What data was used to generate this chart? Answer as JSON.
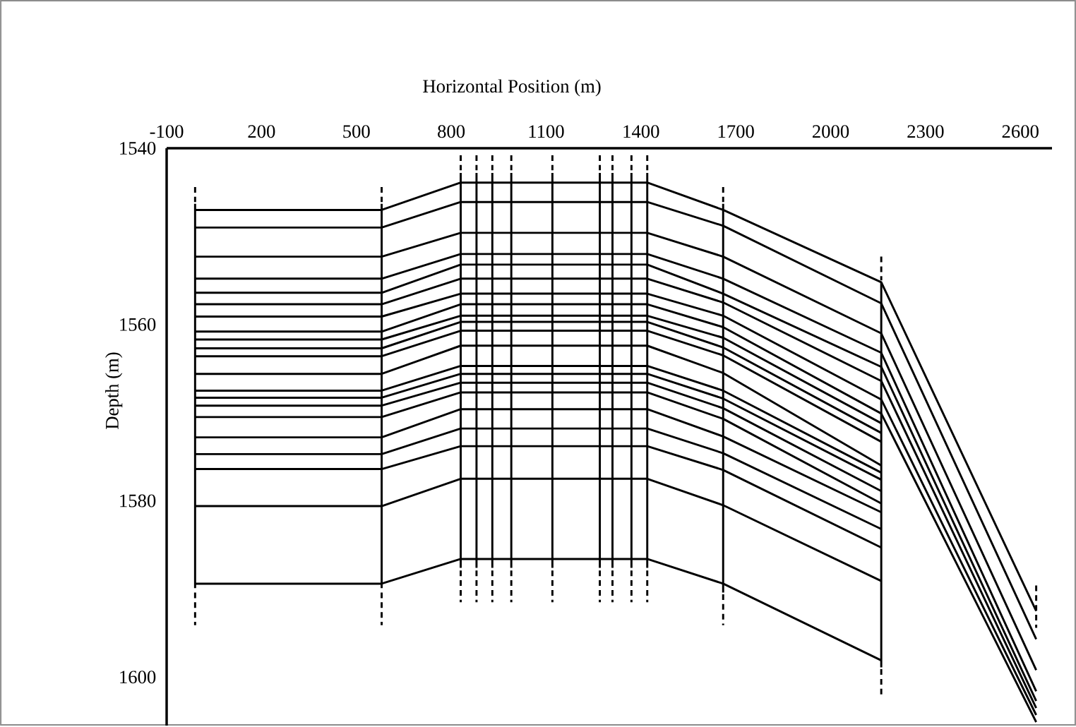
{
  "chart_data": {
    "type": "line",
    "xlabel": "Horizontal Position (m)",
    "ylabel": "Depth (m)",
    "xlim": [
      -100,
      2700
    ],
    "ylim": [
      1605.5,
      1540
    ],
    "xticks": [
      -100,
      200,
      500,
      800,
      1100,
      1400,
      1700,
      2000,
      2300,
      2600
    ],
    "yticks": [
      1540,
      1560,
      1580,
      1600
    ],
    "x": [
      -10,
      580,
      830,
      880,
      930,
      990,
      1120,
      1270,
      1310,
      1370,
      1420,
      1660,
      2160,
      2650
    ],
    "line_style": "solid",
    "series": [
      {
        "color": "#000000",
        "values": [
          1547.0,
          1547.0,
          1543.9,
          1543.9,
          1543.9,
          1543.9,
          1543.9,
          1543.9,
          1543.9,
          1543.9,
          1543.9,
          1547.0,
          1555.2,
          1592.5
        ]
      },
      {
        "color": "#000000",
        "values": [
          1549.0,
          1549.0,
          1546.1,
          1546.1,
          1546.1,
          1546.1,
          1546.1,
          1546.1,
          1546.1,
          1546.1,
          1546.1,
          1548.8,
          1557.6,
          1595.7
        ]
      },
      {
        "color": "#000000",
        "values": [
          1552.3,
          1552.3,
          1549.6,
          1549.6,
          1549.6,
          1549.6,
          1549.6,
          1549.6,
          1549.6,
          1549.6,
          1549.6,
          1552.3,
          1561.0,
          1599.2
        ]
      },
      {
        "color": "#000000",
        "values": [
          1554.8,
          1554.8,
          1552.0,
          1552.0,
          1552.0,
          1552.0,
          1552.0,
          1552.0,
          1552.0,
          1552.0,
          1552.0,
          1554.8,
          1563.2,
          1601.6
        ]
      },
      {
        "color": "#000000",
        "values": [
          1556.4,
          1556.4,
          1553.2,
          1553.2,
          1553.2,
          1553.2,
          1553.2,
          1553.2,
          1553.2,
          1553.2,
          1553.2,
          1556.5,
          1564.8,
          1602.7
        ]
      },
      {
        "color": "#000000",
        "values": [
          1557.7,
          1557.7,
          1554.8,
          1554.8,
          1554.8,
          1554.8,
          1554.8,
          1554.8,
          1554.8,
          1554.8,
          1554.8,
          1557.5,
          1566.4,
          1603.5
        ]
      },
      {
        "color": "#000000",
        "values": [
          1559.1,
          1559.1,
          1556.5,
          1556.5,
          1556.5,
          1556.5,
          1556.5,
          1556.5,
          1556.5,
          1556.5,
          1556.5,
          1559.0,
          1568.5,
          1604.3
        ]
      },
      {
        "color": "#000000",
        "values": [
          1560.8,
          1560.8,
          1557.7,
          1557.7,
          1557.7,
          1557.7,
          1557.7,
          1557.7,
          1557.7,
          1557.7,
          1557.7,
          1560.3,
          1570.1,
          1605.1
        ]
      },
      {
        "color": "#000000",
        "values": [
          1561.7,
          1561.7,
          1559.0,
          1559.0,
          1559.0,
          1559.0,
          1559.0,
          1559.0,
          1559.0,
          1559.0,
          1559.0,
          1561.5,
          1571.2,
          null
        ]
      },
      {
        "color": "#000000",
        "values": [
          1562.7,
          1562.7,
          1559.7,
          1559.7,
          1559.7,
          1559.7,
          1559.7,
          1559.7,
          1559.7,
          1559.7,
          1559.7,
          1562.6,
          1572.3,
          null
        ]
      },
      {
        "color": "#000000",
        "values": [
          1563.6,
          1563.6,
          1560.7,
          1560.7,
          1560.7,
          1560.7,
          1560.7,
          1560.7,
          1560.7,
          1560.7,
          1560.7,
          1563.5,
          1573.3,
          null
        ]
      },
      {
        "color": "#000000",
        "values": [
          1565.6,
          1565.6,
          1562.4,
          1562.4,
          1562.4,
          1562.4,
          1562.4,
          1562.4,
          1562.4,
          1562.4,
          1562.4,
          1565.5,
          1576.0,
          null
        ]
      },
      {
        "color": "#000000",
        "values": [
          1567.5,
          1567.5,
          1564.7,
          1564.7,
          1564.7,
          1564.7,
          1564.7,
          1564.7,
          1564.7,
          1564.7,
          1564.7,
          1567.5,
          1576.8,
          null
        ]
      },
      {
        "color": "#000000",
        "values": [
          1568.3,
          1568.3,
          1565.6,
          1565.6,
          1565.6,
          1565.6,
          1565.6,
          1565.6,
          1565.6,
          1565.6,
          1565.6,
          1568.4,
          1577.6,
          null
        ]
      },
      {
        "color": "#000000",
        "values": [
          1569.2,
          1569.2,
          1566.6,
          1566.6,
          1566.6,
          1566.6,
          1566.6,
          1566.6,
          1566.6,
          1566.6,
          1566.6,
          1569.5,
          1578.9,
          null
        ]
      },
      {
        "color": "#000000",
        "values": [
          1570.5,
          1570.5,
          1567.7,
          1567.7,
          1567.7,
          1567.7,
          1567.7,
          1567.7,
          1567.7,
          1567.7,
          1567.7,
          1570.7,
          1580.3,
          null
        ]
      },
      {
        "color": "#000000",
        "values": [
          1572.8,
          1572.8,
          1569.6,
          1569.6,
          1569.6,
          1569.6,
          1569.6,
          1569.6,
          1569.6,
          1569.6,
          1569.6,
          1572.7,
          1581.3,
          null
        ]
      },
      {
        "color": "#000000",
        "values": [
          1574.7,
          1574.7,
          1571.8,
          1571.8,
          1571.8,
          1571.8,
          1571.8,
          1571.8,
          1571.8,
          1571.8,
          1571.8,
          1574.6,
          1583.2,
          null
        ]
      },
      {
        "color": "#000000",
        "values": [
          1576.4,
          1576.4,
          1573.8,
          1573.8,
          1573.8,
          1573.8,
          1573.8,
          1573.8,
          1573.8,
          1573.8,
          1573.8,
          1576.5,
          1585.3,
          null
        ]
      },
      {
        "color": "#000000",
        "values": [
          1580.6,
          1580.6,
          1577.5,
          1577.5,
          1577.5,
          1577.5,
          1577.5,
          1577.5,
          1577.5,
          1577.5,
          1577.5,
          1580.5,
          1589.1,
          null
        ]
      },
      {
        "color": "#000000",
        "values": [
          1589.4,
          1589.4,
          1586.6,
          1586.6,
          1586.6,
          1586.6,
          1586.6,
          1586.6,
          1586.6,
          1586.6,
          1586.6,
          1589.4,
          1598.1,
          null
        ]
      },
      {
        "color": "#000000",
        "x": [
          -10,
          -10
        ],
        "values": [
          1546.3,
          1589.9
        ]
      },
      {
        "color": "#000000",
        "x": [
          580,
          580
        ],
        "values": [
          1546.3,
          1589.9
        ]
      },
      {
        "color": "#000000",
        "x": [
          830,
          830
        ],
        "values": [
          1542.8,
          1587.6
        ]
      },
      {
        "color": "#000000",
        "x": [
          880,
          880
        ],
        "values": [
          1542.8,
          1587.6
        ]
      },
      {
        "color": "#000000",
        "x": [
          930,
          930
        ],
        "values": [
          1542.8,
          1587.6
        ]
      },
      {
        "color": "#000000",
        "x": [
          990,
          990
        ],
        "values": [
          1542.8,
          1587.6
        ]
      },
      {
        "color": "#000000",
        "x": [
          1120,
          1120
        ],
        "values": [
          1542.8,
          1587.6
        ]
      },
      {
        "color": "#000000",
        "x": [
          1270,
          1270
        ],
        "values": [
          1542.8,
          1587.6
        ]
      },
      {
        "color": "#000000",
        "x": [
          1310,
          1310
        ],
        "values": [
          1542.8,
          1587.6
        ]
      },
      {
        "color": "#000000",
        "x": [
          1370,
          1370
        ],
        "values": [
          1542.8,
          1587.6
        ]
      },
      {
        "color": "#000000",
        "x": [
          1420,
          1420
        ],
        "values": [
          1542.8,
          1587.6
        ]
      },
      {
        "color": "#000000",
        "x": [
          1660,
          1660
        ],
        "values": [
          1546.3,
          1590.4
        ]
      },
      {
        "color": "#000000",
        "x": [
          2160,
          2160
        ],
        "values": [
          1555.2,
          1598.9
        ]
      },
      {
        "color": "#000000",
        "line_style": "dashed",
        "x": [
          -10,
          -10
        ],
        "values": [
          1544.4,
          1546.1
        ]
      },
      {
        "color": "#000000",
        "line_style": "dashed",
        "x": [
          -10,
          -10
        ],
        "values": [
          1590.4,
          1594.1
        ]
      },
      {
        "color": "#000000",
        "line_style": "dashed",
        "x": [
          580,
          580
        ],
        "values": [
          1544.4,
          1546.1
        ]
      },
      {
        "color": "#000000",
        "line_style": "dashed",
        "x": [
          580,
          580
        ],
        "values": [
          1590.4,
          1594.1
        ]
      },
      {
        "color": "#000000",
        "line_style": "dashed",
        "x": [
          830,
          830
        ],
        "values": [
          1540.8,
          1542.5
        ]
      },
      {
        "color": "#000000",
        "line_style": "dashed",
        "x": [
          830,
          830
        ],
        "values": [
          1587.9,
          1591.5
        ]
      },
      {
        "color": "#000000",
        "line_style": "dashed",
        "x": [
          880,
          880
        ],
        "values": [
          1540.8,
          1542.5
        ]
      },
      {
        "color": "#000000",
        "line_style": "dashed",
        "x": [
          880,
          880
        ],
        "values": [
          1587.9,
          1591.5
        ]
      },
      {
        "color": "#000000",
        "line_style": "dashed",
        "x": [
          930,
          930
        ],
        "values": [
          1540.8,
          1542.5
        ]
      },
      {
        "color": "#000000",
        "line_style": "dashed",
        "x": [
          930,
          930
        ],
        "values": [
          1587.9,
          1591.5
        ]
      },
      {
        "color": "#000000",
        "line_style": "dashed",
        "x": [
          990,
          990
        ],
        "values": [
          1540.8,
          1542.5
        ]
      },
      {
        "color": "#000000",
        "line_style": "dashed",
        "x": [
          990,
          990
        ],
        "values": [
          1587.9,
          1591.5
        ]
      },
      {
        "color": "#000000",
        "line_style": "dashed",
        "x": [
          1120,
          1120
        ],
        "values": [
          1540.8,
          1542.5
        ]
      },
      {
        "color": "#000000",
        "line_style": "dashed",
        "x": [
          1120,
          1120
        ],
        "values": [
          1587.9,
          1591.5
        ]
      },
      {
        "color": "#000000",
        "line_style": "dashed",
        "x": [
          1270,
          1270
        ],
        "values": [
          1540.8,
          1542.5
        ]
      },
      {
        "color": "#000000",
        "line_style": "dashed",
        "x": [
          1270,
          1270
        ],
        "values": [
          1587.9,
          1591.5
        ]
      },
      {
        "color": "#000000",
        "line_style": "dashed",
        "x": [
          1310,
          1310
        ],
        "values": [
          1540.8,
          1542.5
        ]
      },
      {
        "color": "#000000",
        "line_style": "dashed",
        "x": [
          1310,
          1310
        ],
        "values": [
          1587.9,
          1591.5
        ]
      },
      {
        "color": "#000000",
        "line_style": "dashed",
        "x": [
          1370,
          1370
        ],
        "values": [
          1540.8,
          1542.5
        ]
      },
      {
        "color": "#000000",
        "line_style": "dashed",
        "x": [
          1370,
          1370
        ],
        "values": [
          1587.9,
          1591.5
        ]
      },
      {
        "color": "#000000",
        "line_style": "dashed",
        "x": [
          1420,
          1420
        ],
        "values": [
          1540.8,
          1542.5
        ]
      },
      {
        "color": "#000000",
        "line_style": "dashed",
        "x": [
          1420,
          1420
        ],
        "values": [
          1587.9,
          1591.5
        ]
      },
      {
        "color": "#000000",
        "line_style": "dashed",
        "x": [
          1660,
          1660
        ],
        "values": [
          1544.4,
          1546.1
        ]
      },
      {
        "color": "#000000",
        "line_style": "dashed",
        "x": [
          1660,
          1660
        ],
        "values": [
          1590.6,
          1594.1
        ]
      },
      {
        "color": "#000000",
        "line_style": "dashed",
        "x": [
          2160,
          2160
        ],
        "values": [
          1552.3,
          1555.0
        ]
      },
      {
        "color": "#000000",
        "line_style": "dashed",
        "x": [
          2160,
          2160
        ],
        "values": [
          1599.1,
          1602.4
        ]
      },
      {
        "color": "#000000",
        "line_style": "dashed",
        "x": [
          2650,
          2650
        ],
        "values": [
          1589.6,
          1594.4
        ]
      }
    ]
  }
}
